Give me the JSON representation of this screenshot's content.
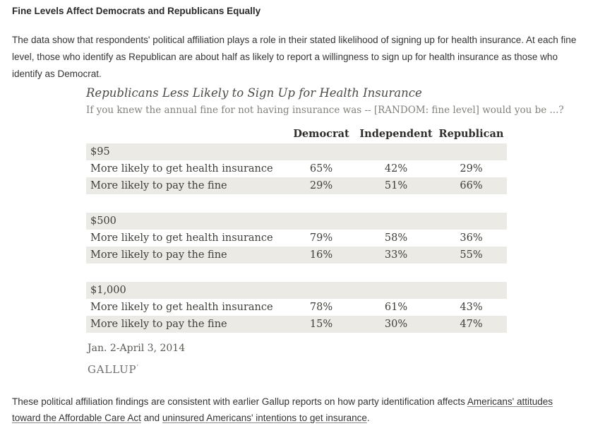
{
  "page": {
    "heading": "Fine Levels Affect Democrats and Republicans Equally",
    "intro_paragraph": "The data show that respondents' political affiliation plays a role in their stated likelihood of signing up for health insurance. At each fine level, those who identify as Republican are about half as likely to report a willingness to sign up for health insurance as those who identify as Democrat."
  },
  "table": {
    "title": "Republicans Less Likely to Sign Up for Health Insurance",
    "subtitle": "If you knew the annual fine for not having insurance was -- [RANDOM: fine level] would you be ...?",
    "columns": [
      "Democrat",
      "Independent",
      "Republican"
    ],
    "sections": [
      {
        "fine_level": "$95",
        "rows": [
          {
            "label": "More likely to get health insurance",
            "values": [
              "65%",
              "42%",
              "29%"
            ]
          },
          {
            "label": "More likely to pay the fine",
            "values": [
              "29%",
              "51%",
              "66%"
            ]
          }
        ]
      },
      {
        "fine_level": "$500",
        "rows": [
          {
            "label": "More likely to get health insurance",
            "values": [
              "79%",
              "58%",
              "36%"
            ]
          },
          {
            "label": "More likely to pay the fine",
            "values": [
              "16%",
              "33%",
              "55%"
            ]
          }
        ]
      },
      {
        "fine_level": "$1,000",
        "rows": [
          {
            "label": "More likely to get health insurance",
            "values": [
              "78%",
              "61%",
              "43%"
            ]
          },
          {
            "label": "More likely to pay the fine",
            "values": [
              "15%",
              "30%",
              "47%"
            ]
          }
        ]
      }
    ],
    "date_note": "Jan. 2-April 3, 2014",
    "source": "GALLUP",
    "source_mark": "’"
  },
  "footer": {
    "text_before": "These political affiliation findings are consistent with earlier Gallup reports on how party identification affects ",
    "link1": "Americans' attitudes toward the Affordable Care Act",
    "text_middle": " and ",
    "link2": "uninsured Americans' intentions to get insurance",
    "text_after": "."
  },
  "colors": {
    "stripe_background": "#ECEAE4",
    "table_text": "#3F3E39",
    "chart_title": "#4B4A45",
    "chart_subtitle": "#82817C",
    "gallup_logo": "#6E6E6E",
    "body_text": "#333333",
    "link_underline": "#8A8A8A"
  },
  "chart_data": {
    "type": "table",
    "title": "Republicans Less Likely to Sign Up for Health Insurance",
    "subtitle": "If you knew the annual fine for not having insurance was -- [RANDOM: fine level] would you be ...?",
    "columns": [
      "Democrat",
      "Independent",
      "Republican"
    ],
    "unit": "percent",
    "groups": [
      {
        "fine_level": "$95",
        "rows": [
          {
            "label": "More likely to get health insurance",
            "values": [
              65,
              42,
              29
            ]
          },
          {
            "label": "More likely to pay the fine",
            "values": [
              29,
              51,
              66
            ]
          }
        ]
      },
      {
        "fine_level": "$500",
        "rows": [
          {
            "label": "More likely to get health insurance",
            "values": [
              79,
              58,
              36
            ]
          },
          {
            "label": "More likely to pay the fine",
            "values": [
              16,
              33,
              55
            ]
          }
        ]
      },
      {
        "fine_level": "$1,000",
        "rows": [
          {
            "label": "More likely to get health insurance",
            "values": [
              78,
              61,
              43
            ]
          },
          {
            "label": "More likely to pay the fine",
            "values": [
              15,
              30,
              47
            ]
          }
        ]
      }
    ],
    "date_note": "Jan. 2-April 3, 2014",
    "source": "GALLUP"
  }
}
